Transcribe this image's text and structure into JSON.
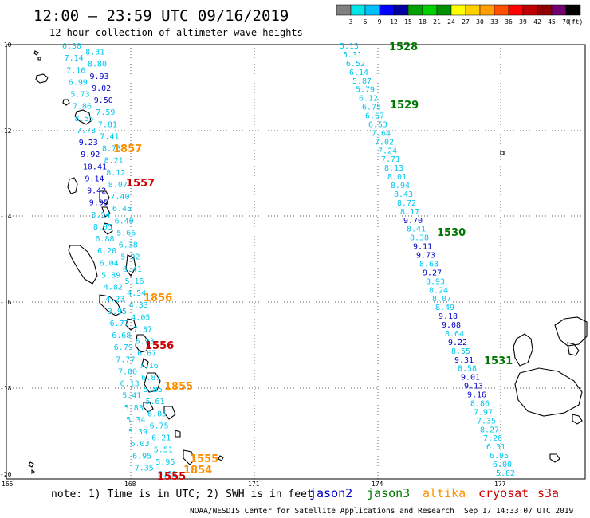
{
  "header": {
    "title": "12:00 – 23:59 UTC 09/16/2019",
    "subtitle": "12 hour collection of altimeter wave heights"
  },
  "legend": {
    "unit": "(ft)",
    "colors": [
      "#808080",
      "#00e6e6",
      "#00bfff",
      "#0000ff",
      "#0000a0",
      "#00a000",
      "#00d000",
      "#009000",
      "#ffff00",
      "#ffd000",
      "#ffa000",
      "#ff5000",
      "#ff0000",
      "#c00000",
      "#900000",
      "#700070",
      "#000000"
    ],
    "labels": [
      "3",
      "6",
      "9",
      "12",
      "15",
      "18",
      "21",
      "24",
      "27",
      "30",
      "33",
      "36",
      "39",
      "42",
      "45",
      "70"
    ]
  },
  "axes": {
    "lat_labels": [
      "-10",
      "-12",
      "-14",
      "-16",
      "-18",
      "-20"
    ],
    "lon_labels": [
      "165",
      "168",
      "171",
      "174",
      "177"
    ]
  },
  "colors": {
    "light_cyan": "#00c8f0",
    "blue": "#0000cc",
    "green": "#007800",
    "orange": "#ff9000",
    "red": "#cc0000"
  },
  "track1_values": [
    "6.30",
    "8.31",
    "7.14",
    "8.80",
    "7.16",
    "9.93",
    "6.99",
    "9.02",
    "5.73",
    "9.50",
    "7.86",
    "7.59",
    "8.55",
    "7.81",
    "7.78",
    "7.41",
    "9.23",
    "8.73",
    "9.92",
    "8.21",
    "10.41",
    "8.12",
    "9.14",
    "8.07",
    "9.42",
    "7.40",
    "9.95",
    "6.45",
    "8.54",
    "6.40",
    "8.05",
    "5.66",
    "6.88",
    "6.38",
    "6.20",
    "5.92",
    "6.04",
    "6.41",
    "5.89",
    "5.16",
    "4.82",
    "4.54",
    "4.23",
    "4.33",
    "3.95",
    "4.05",
    "6.77",
    "7.37",
    "6.68",
    "6.93",
    "6.79",
    "6.67",
    "7.77",
    "7.16",
    "7.00",
    "6.87",
    "6.13",
    "5.85",
    "5.41",
    "5.61",
    "5.83",
    "6.05",
    "5.34",
    "6.75",
    "5.39",
    "6.21",
    "6.03",
    "5.51",
    "6.95",
    "5.95",
    "7.35",
    "6.03"
  ],
  "track2_values": [
    "5.13",
    "5.31",
    "6.52",
    "6.14",
    "5.87",
    "5.79",
    "6.12",
    "6.75",
    "6.67",
    "6.53",
    "7.64",
    "7.02",
    "7.24",
    "7.71",
    "8.13",
    "8.01",
    "8.94",
    "8.43",
    "8.72",
    "8.17",
    "9.70",
    "8.41",
    "8.38",
    "9.11",
    "9.73",
    "8.63",
    "9.27",
    "8.93",
    "8.24",
    "8.07",
    "8.49",
    "9.18",
    "9.08",
    "8.64",
    "9.22",
    "8.55",
    "9.31",
    "8.58",
    "9.01",
    "9.13",
    "9.16",
    "8.86",
    "7.97",
    "7.35",
    "8.27",
    "7.26",
    "6.31",
    "6.95",
    "6.00",
    "5.82"
  ],
  "pass_labels": {
    "p1528": "1528",
    "p1529": "1529",
    "p1530": "1530",
    "p1531": "1531",
    "p1857": "1857",
    "p1557": "1557",
    "p1856": "1856",
    "p1556": "1556",
    "p1855": "1855",
    "p1555a": "1555",
    "p1854": "1854",
    "p1555": "1555"
  },
  "footer": {
    "note": "note: 1) Time is in UTC; 2) SWH is in feet",
    "sats": [
      "jason2",
      "jason3",
      "altika",
      "cryosat",
      "s3a"
    ],
    "credit": "NOAA/NESDIS Center for Satellite Applications and Research",
    "timestamp": "Sep 17 14:33:07 UTC 2019"
  }
}
